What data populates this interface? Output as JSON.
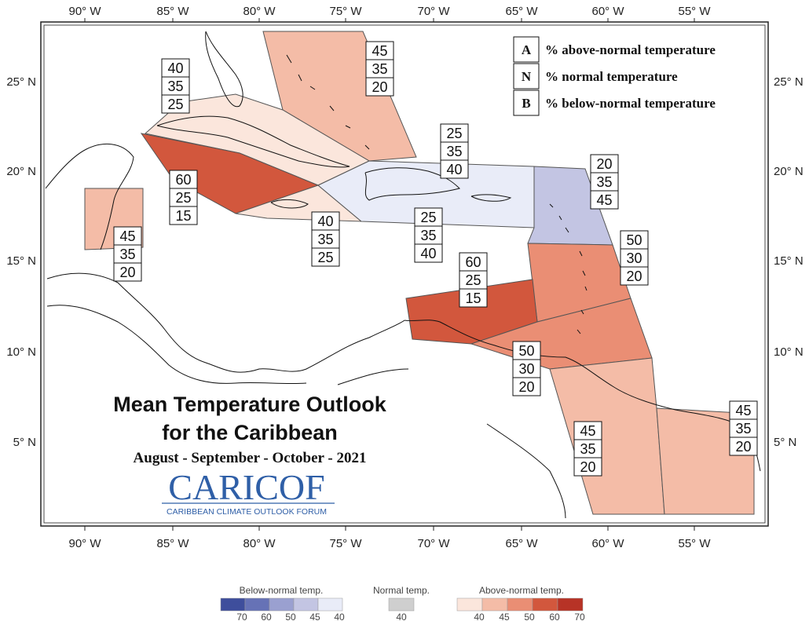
{
  "colors": {
    "above_40": "#fbe6dc",
    "above_45": "#f4bca7",
    "above_50": "#ea8e74",
    "above_60": "#d2573d",
    "below_45": "#c3c5e3",
    "below_40": "#e9ecf8",
    "normal": "#cfcfcf"
  },
  "axes": {
    "x_labels": [
      "90° W",
      "85° W",
      "80° W",
      "75° W",
      "70° W",
      "65° W",
      "60° W",
      "55° W"
    ],
    "y_labels": [
      "25° N",
      "20° N",
      "15° N",
      "10° N",
      "5° N"
    ]
  },
  "legend": {
    "items": [
      {
        "key": "A",
        "text": "% above-normal temperature"
      },
      {
        "key": "N",
        "text": "% normal temperature"
      },
      {
        "key": "B",
        "text": "% below-normal temperature"
      }
    ]
  },
  "title": {
    "line1": "Mean Temperature Outlook",
    "line2": "for the Caribbean",
    "period": "August - September - October - 2021"
  },
  "logo": {
    "name": "CARICOF",
    "tagline": "CARIBBEAN CLIMATE OUTLOOK FORUM"
  },
  "regions": [
    {
      "id": "bahamas",
      "above": "45",
      "normal": "35",
      "below": "20",
      "category": "above_45"
    },
    {
      "id": "cuba-west",
      "above": "60",
      "normal": "25",
      "below": "15",
      "category": "above_60"
    },
    {
      "id": "cuba-east",
      "above": "40",
      "normal": "35",
      "below": "25",
      "category": "above_40"
    },
    {
      "id": "jamaica",
      "above": "40",
      "normal": "35",
      "below": "25",
      "category": "above_40"
    },
    {
      "id": "hispaniola",
      "above": "25",
      "normal": "35",
      "below": "40",
      "category": "below_40"
    },
    {
      "id": "puerto-rico",
      "above": "25",
      "normal": "35",
      "below": "40",
      "category": "below_40"
    },
    {
      "id": "northern-leewards",
      "above": "20",
      "normal": "35",
      "below": "45",
      "category": "below_45"
    },
    {
      "id": "belize",
      "above": "45",
      "normal": "35",
      "below": "20",
      "category": "above_45"
    },
    {
      "id": "windwards",
      "above": "50",
      "normal": "30",
      "below": "20",
      "category": "above_50"
    },
    {
      "id": "abc-islands",
      "above": "60",
      "normal": "25",
      "below": "15",
      "category": "above_60"
    },
    {
      "id": "trinidad",
      "above": "50",
      "normal": "30",
      "below": "20",
      "category": "above_50"
    },
    {
      "id": "guyana",
      "above": "45",
      "normal": "35",
      "below": "20",
      "category": "above_45"
    },
    {
      "id": "suriname-guiana",
      "above": "45",
      "normal": "35",
      "below": "20",
      "category": "above_45"
    }
  ],
  "color_scale": {
    "below": {
      "title": "Below-normal temp.",
      "ticks": [
        "70",
        "60",
        "50",
        "45",
        "40"
      ],
      "colors": [
        "#3e4e9c",
        "#6672b6",
        "#9aa0d0",
        "#c3c5e3",
        "#e9ecf8"
      ]
    },
    "normal": {
      "title": "Normal temp.",
      "ticks": [
        "40"
      ],
      "colors": [
        "#cfcfcf"
      ]
    },
    "above": {
      "title": "Above-normal temp.",
      "ticks": [
        "40",
        "45",
        "50",
        "60",
        "70"
      ],
      "colors": [
        "#fbe6dc",
        "#f4bca7",
        "#ea8e74",
        "#d2573d",
        "#b73326"
      ]
    }
  }
}
